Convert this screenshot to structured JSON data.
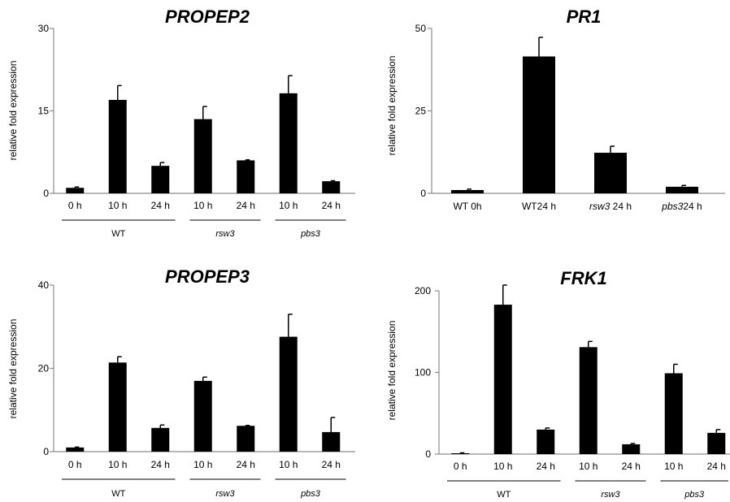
{
  "colors": {
    "bar": "#000000",
    "axis": "#8c8c8c"
  },
  "chart_data": [
    {
      "type": "bar",
      "title": "PROPEP2",
      "ylabel": "relative fold expression",
      "ylim": [
        0,
        30
      ],
      "yticks": [
        "0",
        "15",
        "30"
      ],
      "categories": [
        "0 h",
        "10 h",
        "24 h",
        "10 h",
        "24 h",
        "10 h",
        "24 h"
      ],
      "values": [
        1.0,
        17.0,
        5.0,
        13.5,
        6.0,
        18.2,
        2.2
      ],
      "errors": [
        0.15,
        2.6,
        0.6,
        2.3,
        0.1,
        3.2,
        0.1
      ],
      "groups": [
        {
          "label": "WT",
          "italic": false,
          "span": [
            0,
            2
          ]
        },
        {
          "label": "rsw3",
          "italic": true,
          "span": [
            3,
            4
          ]
        },
        {
          "label": "pbs3",
          "italic": true,
          "span": [
            5,
            6
          ]
        }
      ]
    },
    {
      "type": "bar",
      "title": "PR1",
      "ylabel": "relative fold expression",
      "ylim": [
        0,
        50
      ],
      "yticks": [
        "0",
        "25",
        "50"
      ],
      "categories": [
        "WT 0h",
        "WT24 h",
        "rsw3 24 h",
        "pbs3 24 h"
      ],
      "category_parts": [
        [
          {
            "t": "WT 0h",
            "i": false
          }
        ],
        [
          {
            "t": "WT24 h",
            "i": false
          }
        ],
        [
          {
            "t": "rsw3",
            "i": true
          },
          {
            "t": " 24 h",
            "i": false
          }
        ],
        [
          {
            "t": "pbs3",
            "i": true
          },
          {
            "t": "24 h",
            "i": false
          }
        ]
      ],
      "values": [
        1.0,
        41.5,
        12.3,
        2.0
      ],
      "errors": [
        0.3,
        5.8,
        2.0,
        0.4
      ],
      "groups": []
    },
    {
      "type": "bar",
      "title": "PROPEP3",
      "ylabel": "relative fold expression",
      "ylim": [
        0,
        40
      ],
      "yticks": [
        "0",
        "20",
        "40"
      ],
      "categories": [
        "0 h",
        "10 h",
        "24 h",
        "10 h",
        "24 h",
        "10 h",
        "24 h"
      ],
      "values": [
        1.0,
        21.4,
        5.7,
        17.0,
        6.2,
        27.6,
        4.7
      ],
      "errors": [
        0.1,
        1.4,
        0.7,
        0.9,
        0.1,
        5.4,
        3.5
      ],
      "groups": [
        {
          "label": "WT",
          "italic": false,
          "span": [
            0,
            2
          ]
        },
        {
          "label": "rsw3",
          "italic": true,
          "span": [
            3,
            4
          ]
        },
        {
          "label": "pbs3",
          "italic": true,
          "span": [
            5,
            6
          ]
        }
      ]
    },
    {
      "type": "bar",
      "title": "FRK1",
      "ylabel": "relative fold expression",
      "ylim": [
        0,
        200
      ],
      "yticks": [
        "0",
        "100",
        "200"
      ],
      "categories": [
        "0 h",
        "10 h",
        "24 h",
        "10 h",
        "24 h",
        "10 h",
        "24 h"
      ],
      "values": [
        1.0,
        183,
        30,
        131,
        12,
        99,
        26
      ],
      "errors": [
        0.5,
        24,
        2,
        7,
        1,
        11,
        4
      ],
      "groups": [
        {
          "label": "WT",
          "italic": false,
          "span": [
            0,
            2
          ]
        },
        {
          "label": "rsw3",
          "italic": true,
          "span": [
            3,
            4
          ]
        },
        {
          "label": "pbs3",
          "italic": true,
          "span": [
            5,
            6
          ]
        }
      ]
    }
  ]
}
